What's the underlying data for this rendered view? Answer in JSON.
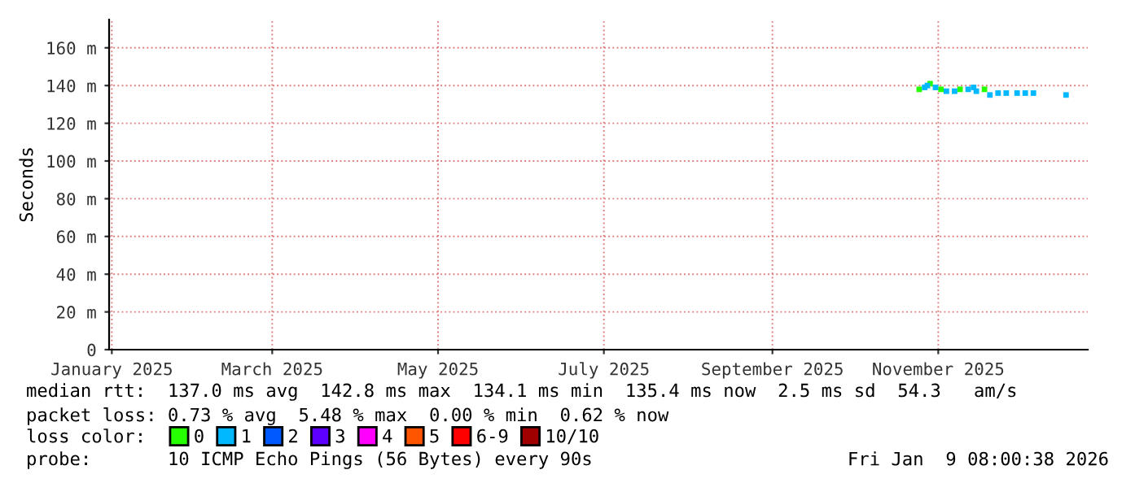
{
  "chart_data": {
    "type": "scatter",
    "ylabel": "Seconds",
    "legend_title": "loss color:",
    "legend": "bottom",
    "grid": true,
    "marker": "square",
    "xlim": [
      "2024-12-31",
      "2025-12-26"
    ],
    "xticks": [
      {
        "value": "2025-01-01",
        "label": "January 2025"
      },
      {
        "value": "2025-03-01",
        "label": "March 2025"
      },
      {
        "value": "2025-05-01",
        "label": "May 2025"
      },
      {
        "value": "2025-07-01",
        "label": "July 2025"
      },
      {
        "value": "2025-09-01",
        "label": "September 2025"
      },
      {
        "value": "2025-11-01",
        "label": "November 2025"
      }
    ],
    "ylim": [
      0,
      175
    ],
    "yticks": [
      0,
      {
        "value": 20,
        "label": "20 m"
      },
      {
        "value": 40,
        "label": "40 m"
      },
      {
        "value": 60,
        "label": "60 m"
      },
      {
        "value": 80,
        "label": "80 m"
      },
      {
        "value": 100,
        "label": "100 m"
      },
      {
        "value": 120,
        "label": "120 m"
      },
      {
        "value": 140,
        "label": "140 m"
      },
      {
        "value": 160,
        "label": "160 m"
      }
    ],
    "series": [
      {
        "name": "0",
        "color": "#26ff00",
        "x": [
          "2025-10-25",
          "2025-10-29",
          "2025-11-02",
          "2025-11-09",
          "2025-11-18"
        ],
        "values": [
          138,
          141,
          138,
          138,
          138
        ]
      },
      {
        "name": "1",
        "color": "#00b8ff",
        "x": [
          "2025-10-27",
          "2025-10-28",
          "2025-10-31",
          "2025-11-04",
          "2025-11-07",
          "2025-11-12",
          "2025-11-14",
          "2025-11-15",
          "2025-11-20",
          "2025-11-23",
          "2025-11-26",
          "2025-11-30",
          "2025-12-03",
          "2025-12-06",
          "2025-12-18"
        ],
        "values": [
          139,
          140,
          139,
          137,
          137,
          138,
          139,
          137,
          135,
          136,
          136,
          136,
          136,
          136,
          135
        ]
      },
      {
        "name": "2",
        "color": "#0059ff"
      },
      {
        "name": "3",
        "color": "#5e00ff"
      },
      {
        "name": "4",
        "color": "#ff00fe"
      },
      {
        "name": "5",
        "color": "#ff5500"
      },
      {
        "name": "6-9",
        "color": "#ff0000"
      },
      {
        "name": "10/10",
        "color": "#a10000"
      }
    ],
    "annotations": [
      "median rtt:  137.0 ms avg  142.8 ms max  134.1 ms min  135.4 ms now  2.5 ms sd  54.3   am/s",
      "packet loss: 0.73 % avg  5.48 % max  0.00 % min  0.62 % now",
      "probe:       10 ICMP Echo Pings (56 Bytes) every 90s",
      "Fri Jan  9 08:00:38 2026"
    ]
  }
}
